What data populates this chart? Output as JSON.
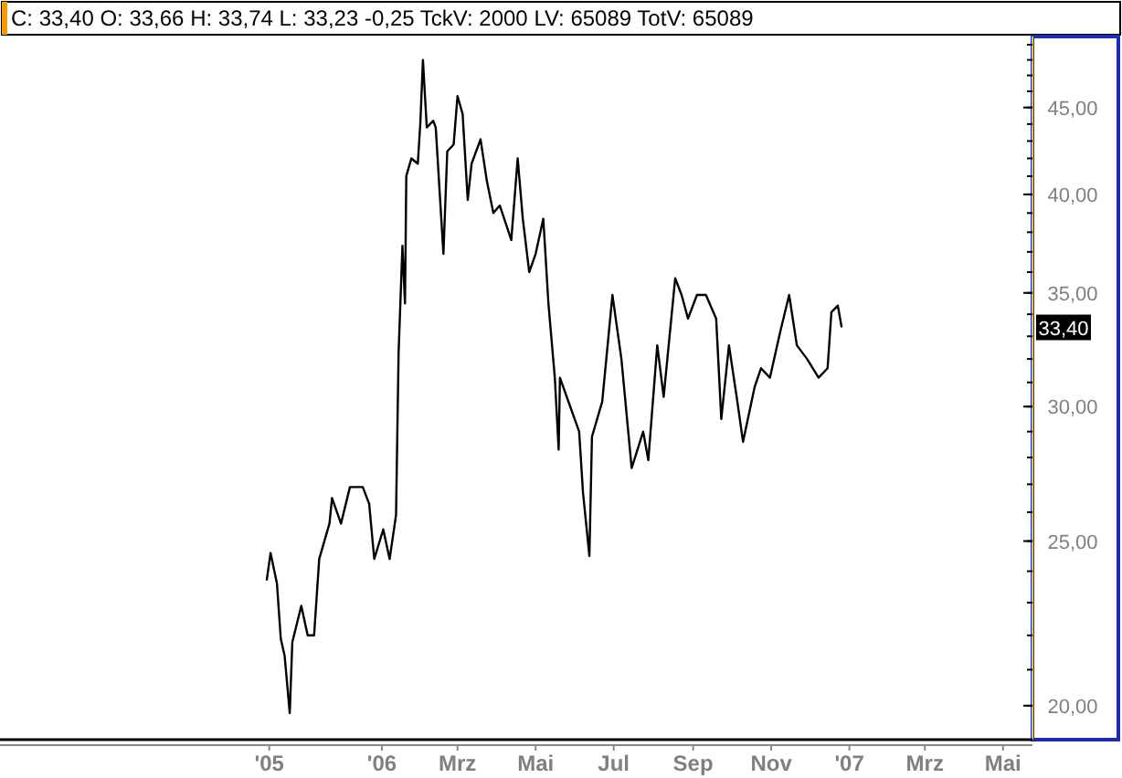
{
  "chart_data": {
    "type": "line",
    "title": "C: 33,40 O: 33,66 H: 33,74 L: 33,23 -0,25 TckV: 2000 LV: 65089 TotV: 65089",
    "x": [
      "2005-10-03",
      "2005-10-06",
      "2005-10-11",
      "2005-10-14",
      "2005-10-17",
      "2005-10-21",
      "2005-10-23",
      "2005-10-30",
      "2005-11-04",
      "2005-11-09",
      "2005-11-13",
      "2005-11-21",
      "2005-11-23",
      "2005-11-30",
      "2005-12-07",
      "2005-12-17",
      "2005-12-22",
      "2005-12-26",
      "2006-01-02",
      "2006-01-07",
      "2006-01-12",
      "2006-01-14",
      "2006-01-17",
      "2006-01-19",
      "2006-01-20",
      "2006-01-24",
      "2006-01-29",
      "2006-01-31",
      "2006-02-02",
      "2006-02-05",
      "2006-02-10",
      "2006-02-12",
      "2006-02-18",
      "2006-02-21",
      "2006-02-26",
      "2006-03-01",
      "2006-03-05",
      "2006-03-09",
      "2006-03-12",
      "2006-03-19",
      "2006-03-24",
      "2006-03-29",
      "2006-04-03",
      "2006-04-08",
      "2006-04-12",
      "2006-04-17",
      "2006-04-21",
      "2006-04-26",
      "2006-05-01",
      "2006-05-07",
      "2006-05-11",
      "2006-05-16",
      "2006-05-19",
      "2006-05-20",
      "2006-05-28",
      "2006-06-04",
      "2006-06-07",
      "2006-06-12",
      "2006-06-14",
      "2006-06-22",
      "2006-06-30",
      "2006-07-07",
      "2006-07-15",
      "2006-07-24",
      "2006-07-28",
      "2006-08-04",
      "2006-08-09",
      "2006-08-18",
      "2006-08-23",
      "2006-08-28",
      "2006-09-04",
      "2006-09-11",
      "2006-09-19",
      "2006-09-23",
      "2006-09-29",
      "2006-10-05",
      "2006-10-10",
      "2006-10-19",
      "2006-10-24",
      "2006-10-31",
      "2006-11-08",
      "2006-11-15",
      "2006-11-21",
      "2006-11-29",
      "2006-12-08",
      "2006-12-15",
      "2006-12-18",
      "2006-12-23",
      "2006-12-26"
    ],
    "series": [
      {
        "color": "#000000",
        "values": [
          23.7,
          24.6,
          23.6,
          21.9,
          21.4,
          19.8,
          21.8,
          22.9,
          22.0,
          22.0,
          24.4,
          25.6,
          26.5,
          25.6,
          26.9,
          26.9,
          26.3,
          24.4,
          25.4,
          24.4,
          25.9,
          32.3,
          37.3,
          34.5,
          41.0,
          42.0,
          41.7,
          44.1,
          48.0,
          43.8,
          44.2,
          43.8,
          36.9,
          42.4,
          42.8,
          45.7,
          44.6,
          39.7,
          41.7,
          43.1,
          40.7,
          39.0,
          39.4,
          38.4,
          37.6,
          42.0,
          38.7,
          36.0,
          36.9,
          38.7,
          34.5,
          31.2,
          28.3,
          31.2,
          30.0,
          29.0,
          26.7,
          24.5,
          28.8,
          30.2,
          34.9,
          32.0,
          27.6,
          29.0,
          27.9,
          32.6,
          30.4,
          35.7,
          34.9,
          33.8,
          34.9,
          34.9,
          33.8,
          29.5,
          32.6,
          30.4,
          28.6,
          30.8,
          31.6,
          31.2,
          33.2,
          34.9,
          32.6,
          32.0,
          31.2,
          31.6,
          34.1,
          34.4,
          33.4
        ]
      }
    ],
    "xlim": [
      "2005-03-13",
      "2007-05-24"
    ],
    "xticks": [
      {
        "value": "2005-10-05",
        "label": "'05"
      },
      {
        "value": "2006-01-01",
        "label": "'06"
      },
      {
        "value": "2006-03-01",
        "label": "Mrz"
      },
      {
        "value": "2006-05-01",
        "label": "Mai"
      },
      {
        "value": "2006-07-01",
        "label": "Jul"
      },
      {
        "value": "2006-09-01",
        "label": "Sep"
      },
      {
        "value": "2006-11-01",
        "label": "Nov"
      },
      {
        "value": "2007-01-01",
        "label": "'07"
      },
      {
        "value": "2007-03-01",
        "label": "Mrz"
      },
      {
        "value": "2007-05-01",
        "label": "Mai"
      }
    ],
    "ylim": [
      19.1,
      49.3
    ],
    "yticks": [
      {
        "value": 20,
        "label": "20,00"
      },
      {
        "value": 25,
        "label": "25,00"
      },
      {
        "value": 30,
        "label": "30,00"
      },
      {
        "value": 35,
        "label": "35,00"
      },
      {
        "value": 40,
        "label": "40,00"
      },
      {
        "value": 45,
        "label": "45,00"
      }
    ],
    "log": "y",
    "grid": false,
    "annotations": [
      {
        "text": "33,40",
        "y": 33.4
      }
    ]
  }
}
